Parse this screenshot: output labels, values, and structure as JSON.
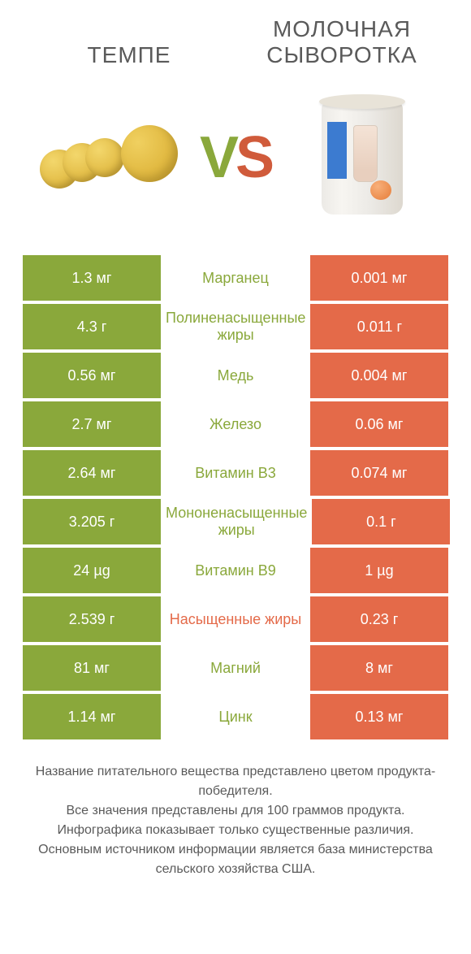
{
  "colors": {
    "left": "#8aa83b",
    "right": "#e46a49",
    "label_left": "#8aa83b",
    "label_right": "#e46a49",
    "text": "#5a5a5a"
  },
  "left_title": "ТЕМПЕ",
  "right_title": "МОЛОЧНАЯ СЫВОРОТКА",
  "vs_v": "V",
  "vs_s": "S",
  "rows": [
    {
      "left": "1.3 мг",
      "label": "Марганец",
      "right": "0.001 мг",
      "winner": "left"
    },
    {
      "left": "4.3 г",
      "label": "Полиненасыщенные жиры",
      "right": "0.011 г",
      "winner": "left"
    },
    {
      "left": "0.56 мг",
      "label": "Медь",
      "right": "0.004 мг",
      "winner": "left"
    },
    {
      "left": "2.7 мг",
      "label": "Железо",
      "right": "0.06 мг",
      "winner": "left"
    },
    {
      "left": "2.64 мг",
      "label": "Витамин B3",
      "right": "0.074 мг",
      "winner": "left"
    },
    {
      "left": "3.205 г",
      "label": "Мононенасыщенные жиры",
      "right": "0.1 г",
      "winner": "left"
    },
    {
      "left": "24 µg",
      "label": "Витамин B9",
      "right": "1 µg",
      "winner": "left"
    },
    {
      "left": "2.539 г",
      "label": "Насыщенные жиры",
      "right": "0.23 г",
      "winner": "right"
    },
    {
      "left": "81 мг",
      "label": "Магний",
      "right": "8 мг",
      "winner": "left"
    },
    {
      "left": "1.14 мг",
      "label": "Цинк",
      "right": "0.13 мг",
      "winner": "left"
    }
  ],
  "footer_lines": [
    "Название питательного вещества представлено цветом продукта-победителя.",
    "Все значения представлены для 100 граммов продукта.",
    "Инфографика показывает только существенные различия.",
    "Основным источником информации является база министерства сельского хозяйства США."
  ]
}
